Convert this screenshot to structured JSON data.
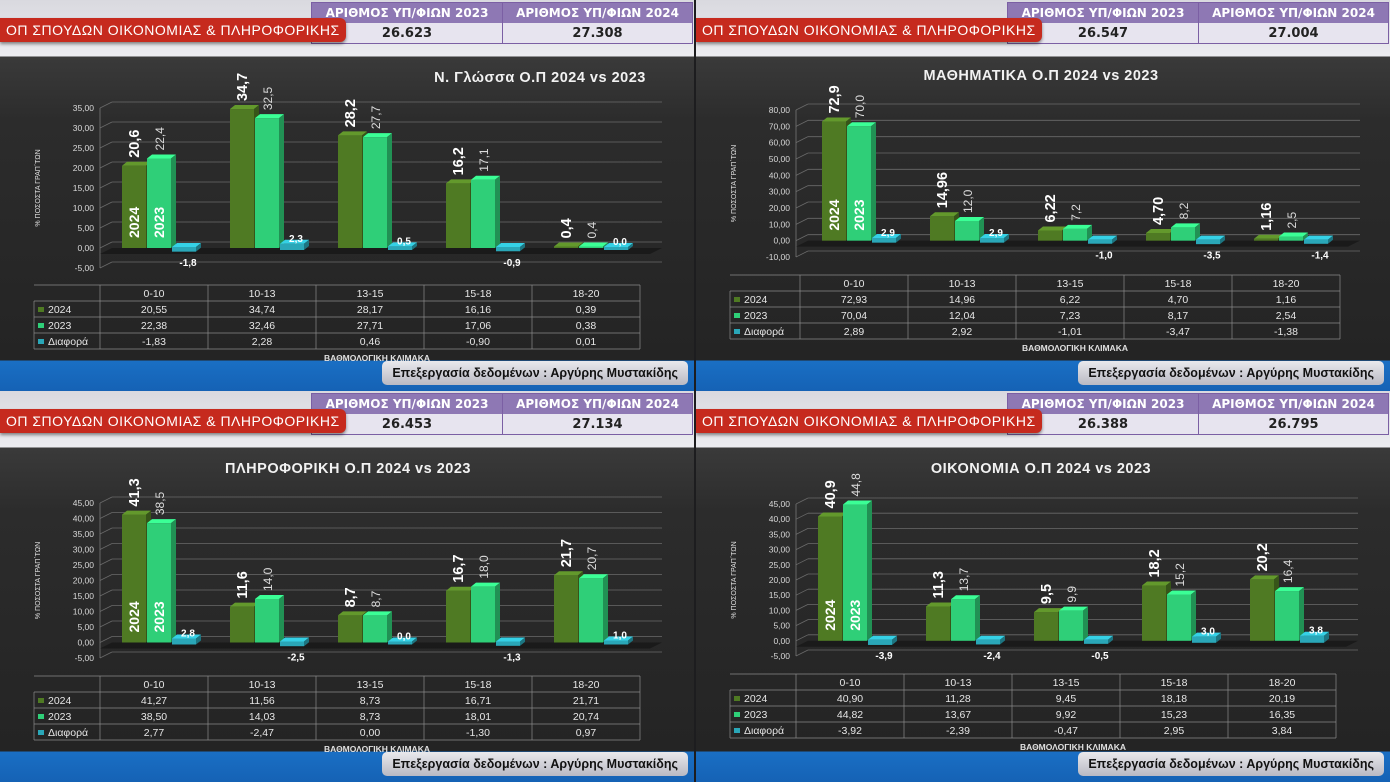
{
  "program_label": "ΟΠ ΣΠΟΥΔΩΝ ΟΙΚΟΝΟΜΙΑΣ & ΠΛΗΡΟΦΟΡΙΚΗΣ",
  "candidates_header_2023": "ΑΡΙΘΜΟΣ ΥΠ/ΦΙΩΝ 2023",
  "candidates_header_2024": "ΑΡΙΘΜΟΣ ΥΠ/ΦΙΩΝ 2024",
  "credit": "Επεξεργασία δεδομένων : Αργύρης Μυστακίδης",
  "ylabel": "% ΠΟΣΟΣΤΑ ΓΡΑΠ΄ΤΩΝ",
  "xlabel": "ΒΑΘΜΟΛΟΓΙΚΗ ΚΛΙΜΑΚΑ",
  "bar_label_2024": "2024",
  "bar_label_2023": "2023",
  "colors": {
    "y2024": "#4f7a23",
    "y2023": "#2fcf78",
    "diff": "#2aa7b8"
  },
  "panels": [
    {
      "candidates_2023": "26.623",
      "candidates_2024": "27.308"
    },
    {
      "candidates_2023": "26.547",
      "candidates_2024": "27.004"
    },
    {
      "candidates_2023": "26.453",
      "candidates_2024": "27.134"
    },
    {
      "candidates_2023": "26.388",
      "candidates_2024": "26.795"
    }
  ],
  "chart_data": [
    {
      "type": "bar",
      "title": "Ν. Γλώσσα Ο.Π 2024 vs 2023",
      "categories": [
        "0-10",
        "10-13",
        "13-15",
        "15-18",
        "18-20"
      ],
      "ylim": [
        -5,
        35
      ],
      "yticks": [
        "-5,00",
        "0,00",
        "5,00",
        "10,00",
        "15,00",
        "20,00",
        "25,00",
        "30,00",
        "35,00"
      ],
      "series": [
        {
          "name": "2024",
          "values": [
            20.55,
            34.74,
            28.17,
            16.16,
            0.39
          ],
          "labels": [
            "20,6",
            "34,7",
            "28,2",
            "16,2",
            "0,4"
          ],
          "table": [
            "20,55",
            "34,74",
            "28,17",
            "16,16",
            "0,39"
          ]
        },
        {
          "name": "2023",
          "values": [
            22.38,
            32.46,
            27.71,
            17.06,
            0.38
          ],
          "labels": [
            "22,4",
            "32,5",
            "27,7",
            "17,1",
            "0,4"
          ],
          "table": [
            "22,38",
            "32,46",
            "27,71",
            "17,06",
            "0,38"
          ]
        },
        {
          "name": "Διαφορά",
          "values": [
            -1.83,
            2.28,
            0.46,
            -0.9,
            0.01
          ],
          "labels": [
            "-1,8",
            "2,3",
            "0,5",
            "-0,9",
            "0,0"
          ],
          "table": [
            "-1,83",
            "2,28",
            "0,46",
            "-0,90",
            "0,01"
          ]
        }
      ]
    },
    {
      "type": "bar",
      "title": "ΜΑΘΗΜΑΤΙΚΑ Ο.Π 2024 vs 2023",
      "categories": [
        "0-10",
        "10-13",
        "13-15",
        "15-18",
        "18-20"
      ],
      "ylim": [
        -10,
        80
      ],
      "yticks": [
        "-10,00",
        "0,00",
        "10,00",
        "20,00",
        "30,00",
        "40,00",
        "50,00",
        "60,00",
        "70,00",
        "80,00"
      ],
      "series": [
        {
          "name": "2024",
          "values": [
            72.93,
            14.96,
            6.22,
            4.7,
            1.16
          ],
          "labels": [
            "72,9",
            "14,96",
            "6,22",
            "4,70",
            "1,16"
          ],
          "table": [
            "72,93",
            "14,96",
            "6,22",
            "4,70",
            "1,16"
          ]
        },
        {
          "name": "2023",
          "values": [
            70.04,
            12.04,
            7.23,
            8.17,
            2.54
          ],
          "labels": [
            "70,0",
            "12,0",
            "7,2",
            "8,2",
            "2,5"
          ],
          "table": [
            "70,04",
            "12,04",
            "7,23",
            "8,17",
            "2,54"
          ]
        },
        {
          "name": "Διαφορά",
          "values": [
            2.89,
            2.92,
            -1.01,
            -3.47,
            -1.38
          ],
          "labels": [
            "2,9",
            "2,9",
            "-1,0",
            "-3,5",
            "-1,4"
          ],
          "table": [
            "2,89",
            "2,92",
            "-1,01",
            "-3,47",
            "-1,38"
          ]
        }
      ]
    },
    {
      "type": "bar",
      "title": "ΠΛΗΡΟΦΟΡΙΚΗ Ο.Π 2024 vs 2023",
      "categories": [
        "0-10",
        "10-13",
        "13-15",
        "15-18",
        "18-20"
      ],
      "ylim": [
        -5,
        45
      ],
      "yticks": [
        "-5,00",
        "0,00",
        "5,00",
        "10,00",
        "15,00",
        "20,00",
        "25,00",
        "30,00",
        "35,00",
        "40,00",
        "45,00"
      ],
      "series": [
        {
          "name": "2024",
          "values": [
            41.27,
            11.56,
            8.73,
            16.71,
            21.71
          ],
          "labels": [
            "41,3",
            "11,6",
            "8,7",
            "16,7",
            "21,7"
          ],
          "table": [
            "41,27",
            "11,56",
            "8,73",
            "16,71",
            "21,71"
          ]
        },
        {
          "name": "2023",
          "values": [
            38.5,
            14.03,
            8.73,
            18.01,
            20.74
          ],
          "labels": [
            "38,5",
            "14,0",
            "8,7",
            "18,0",
            "20,7"
          ],
          "table": [
            "38,50",
            "14,03",
            "8,73",
            "18,01",
            "20,74"
          ]
        },
        {
          "name": "Διαφορά",
          "values": [
            2.77,
            -2.47,
            0.0,
            -1.3,
            0.97
          ],
          "labels": [
            "2,8",
            "-2,5",
            "0,0",
            "-1,3",
            "1,0"
          ],
          "table": [
            "2,77",
            "-2,47",
            "0,00",
            "-1,30",
            "0,97"
          ]
        }
      ]
    },
    {
      "type": "bar",
      "title": "ΟΙΚΟΝΟΜΙΑ Ο.Π 2024 vs 2023",
      "categories": [
        "0-10",
        "10-13",
        "13-15",
        "15-18",
        "18-20"
      ],
      "ylim": [
        -5,
        45
      ],
      "yticks": [
        "-5,00",
        "0,00",
        "5,00",
        "10,00",
        "15,00",
        "20,00",
        "25,00",
        "30,00",
        "35,00",
        "40,00",
        "45,00"
      ],
      "series": [
        {
          "name": "2024",
          "values": [
            40.9,
            11.28,
            9.45,
            18.18,
            20.19
          ],
          "labels": [
            "40,9",
            "11,3",
            "9,5",
            "18,2",
            "20,2"
          ],
          "table": [
            "40,90",
            "11,28",
            "9,45",
            "18,18",
            "20,19"
          ]
        },
        {
          "name": "2023",
          "values": [
            44.82,
            13.67,
            9.92,
            15.23,
            16.35
          ],
          "labels": [
            "44,8",
            "13,7",
            "9,9",
            "15,2",
            "16,4"
          ],
          "table": [
            "44,82",
            "13,67",
            "9,92",
            "15,23",
            "16,35"
          ]
        },
        {
          "name": "Διαφορά",
          "values": [
            -3.92,
            -2.39,
            -0.47,
            2.95,
            3.84
          ],
          "labels": [
            "-3,9",
            "-2,4",
            "-0,5",
            "3,0",
            "3,8"
          ],
          "table": [
            "-3,92",
            "-2,39",
            "-0,47",
            "2,95",
            "3,84"
          ]
        }
      ]
    }
  ]
}
